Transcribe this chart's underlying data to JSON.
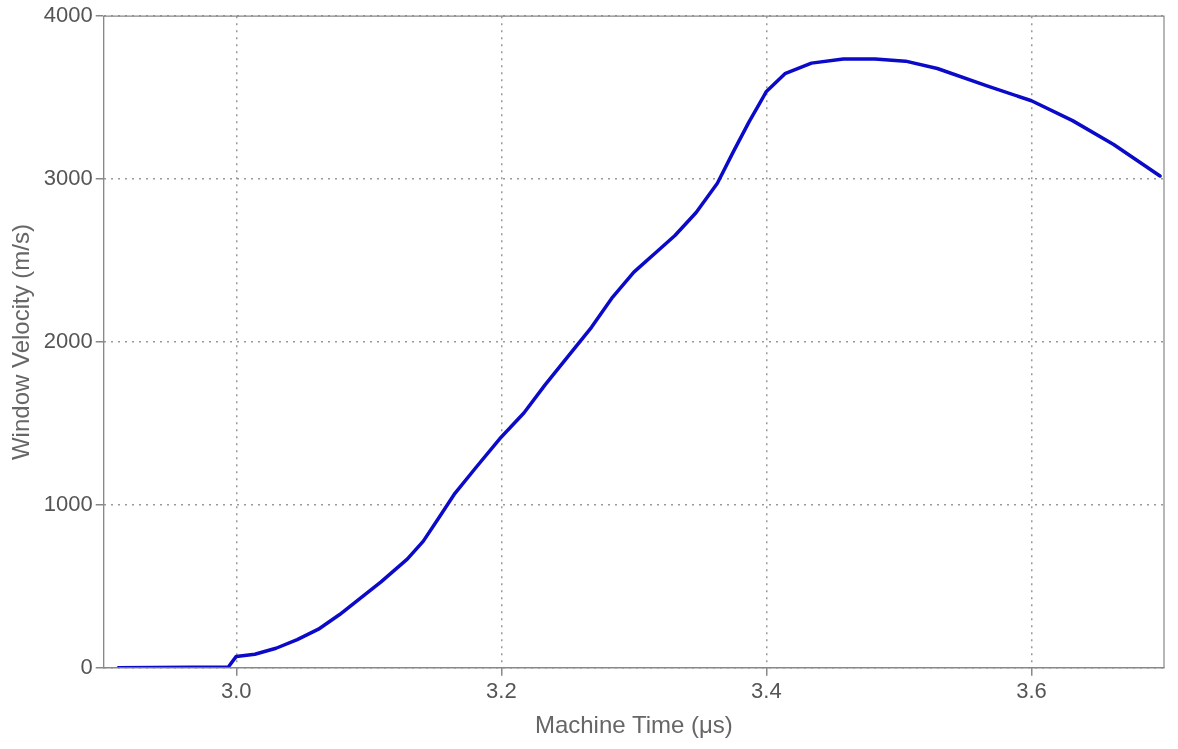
{
  "chart_data": {
    "type": "line",
    "xlabel": "Machine Time (μs)",
    "ylabel": "Window Velocity (m/s)",
    "xlim": [
      2.9,
      3.7
    ],
    "xticks": [
      {
        "value": 3.0,
        "label": "3.0"
      },
      {
        "value": 3.2,
        "label": "3.2"
      },
      {
        "value": 3.4,
        "label": "3.4"
      },
      {
        "value": 3.6,
        "label": "3.6"
      }
    ],
    "ylim": [
      0,
      4000
    ],
    "yticks": [
      0,
      1000,
      2000,
      3000,
      4000
    ],
    "grid": true,
    "marker": "none",
    "line_style": "solid",
    "series": [
      {
        "color": "#0a0ac8",
        "x": [
          2.911,
          2.994,
          3.0,
          3.014,
          3.03,
          3.046,
          3.062,
          3.078,
          3.093,
          3.109,
          3.129,
          3.141,
          3.153,
          3.165,
          3.181,
          3.2,
          3.217,
          3.233,
          3.252,
          3.268,
          3.284,
          3.3,
          3.316,
          3.331,
          3.347,
          3.363,
          3.375,
          3.387,
          3.4,
          3.414,
          3.434,
          3.458,
          3.482,
          3.505,
          3.529,
          3.567,
          3.6,
          3.631,
          3.662,
          3.697
        ],
        "values": [
          0,
          5,
          70,
          83,
          120,
          173,
          237,
          327,
          423,
          526,
          667,
          776,
          923,
          1071,
          1231,
          1417,
          1564,
          1737,
          1929,
          2090,
          2276,
          2429,
          2545,
          2654,
          2795,
          2974,
          3167,
          3353,
          3538,
          3647,
          3712,
          3737,
          3737,
          3724,
          3679,
          3571,
          3481,
          3359,
          3212,
          3019
        ]
      }
    ]
  }
}
